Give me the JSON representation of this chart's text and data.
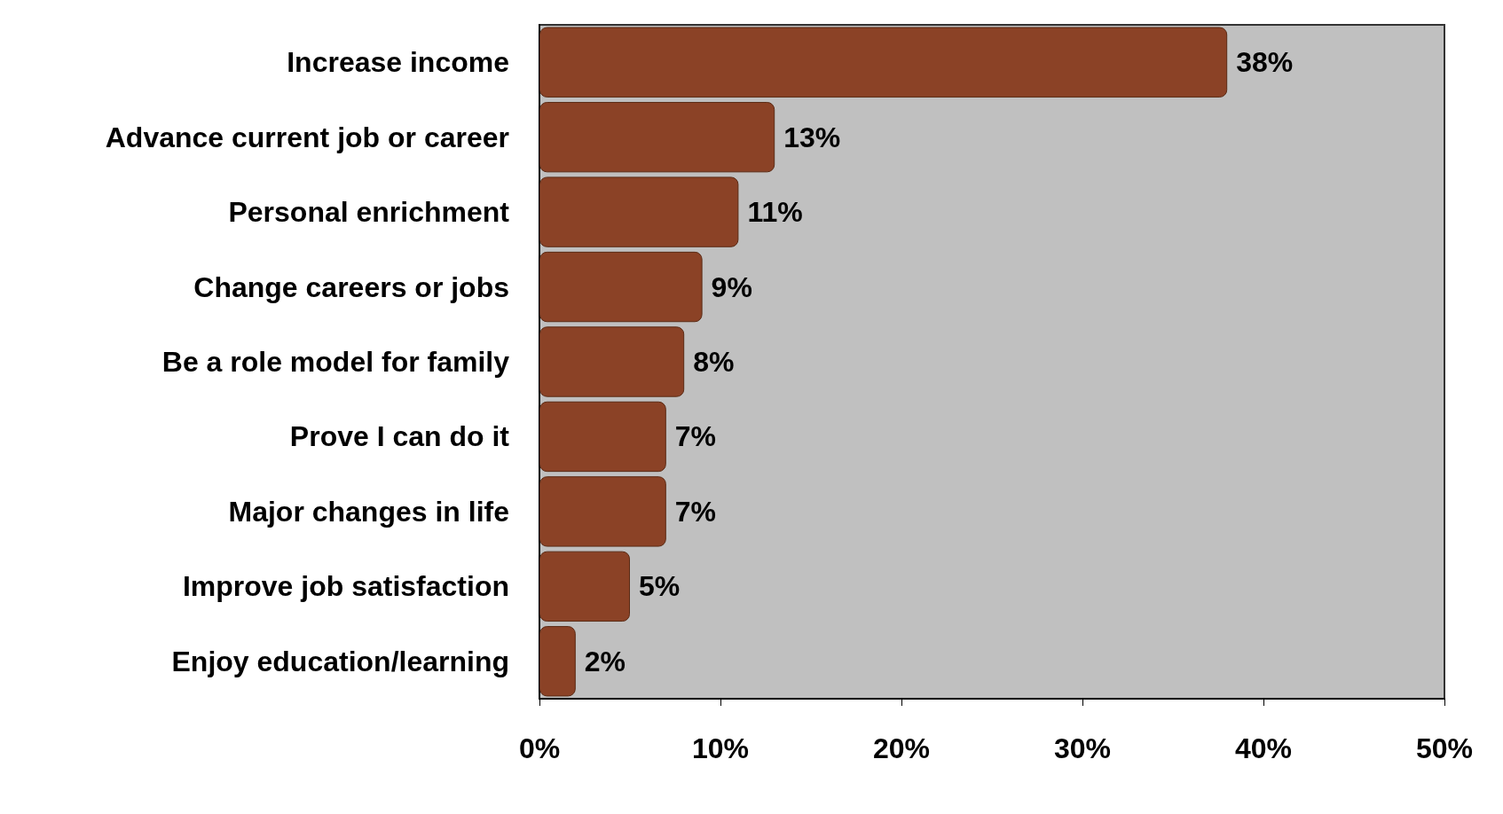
{
  "chart_data": {
    "type": "bar",
    "orientation": "horizontal",
    "categories": [
      "Increase income",
      "Advance current job or career",
      "Personal enrichment",
      "Change careers or jobs",
      "Be a role model for family",
      "Prove I can do it",
      "Major changes in life",
      "Improve job satisfaction",
      "Enjoy education/learning"
    ],
    "values": [
      38,
      13,
      11,
      9,
      8,
      7,
      7,
      5,
      2
    ],
    "value_labels": [
      "38%",
      "13%",
      "11%",
      "9%",
      "8%",
      "7%",
      "7%",
      "5%",
      "2%"
    ],
    "color": "#8b4226",
    "xlim": [
      0,
      50
    ],
    "xticks": [
      {
        "value": 0,
        "label": "0%"
      },
      {
        "value": 10,
        "label": "10%"
      },
      {
        "value": 20,
        "label": "20%"
      },
      {
        "value": 30,
        "label": "30%"
      },
      {
        "value": 40,
        "label": "40%"
      },
      {
        "value": 50,
        "label": "50%"
      }
    ],
    "grid": false
  }
}
